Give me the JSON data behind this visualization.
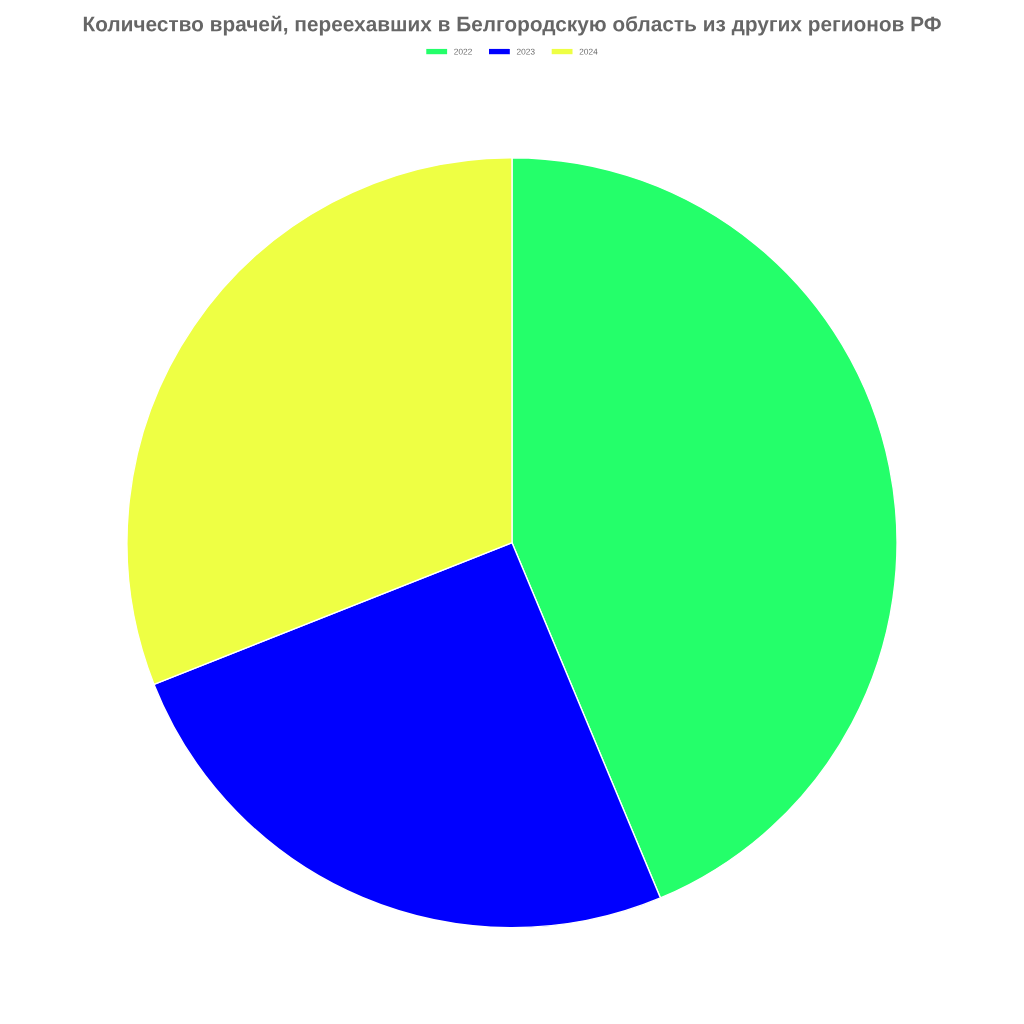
{
  "chart_data": {
    "type": "pie",
    "title": "Количество врачей, переехавших в Белгородскую область из других регионов РФ",
    "categories": [
      "2022",
      "2023",
      "2024"
    ],
    "values": [
      43.7,
      25.3,
      31.0
    ],
    "colors": [
      "#24ff6a",
      "#0000ff",
      "#eeff44"
    ],
    "legend": "top"
  }
}
